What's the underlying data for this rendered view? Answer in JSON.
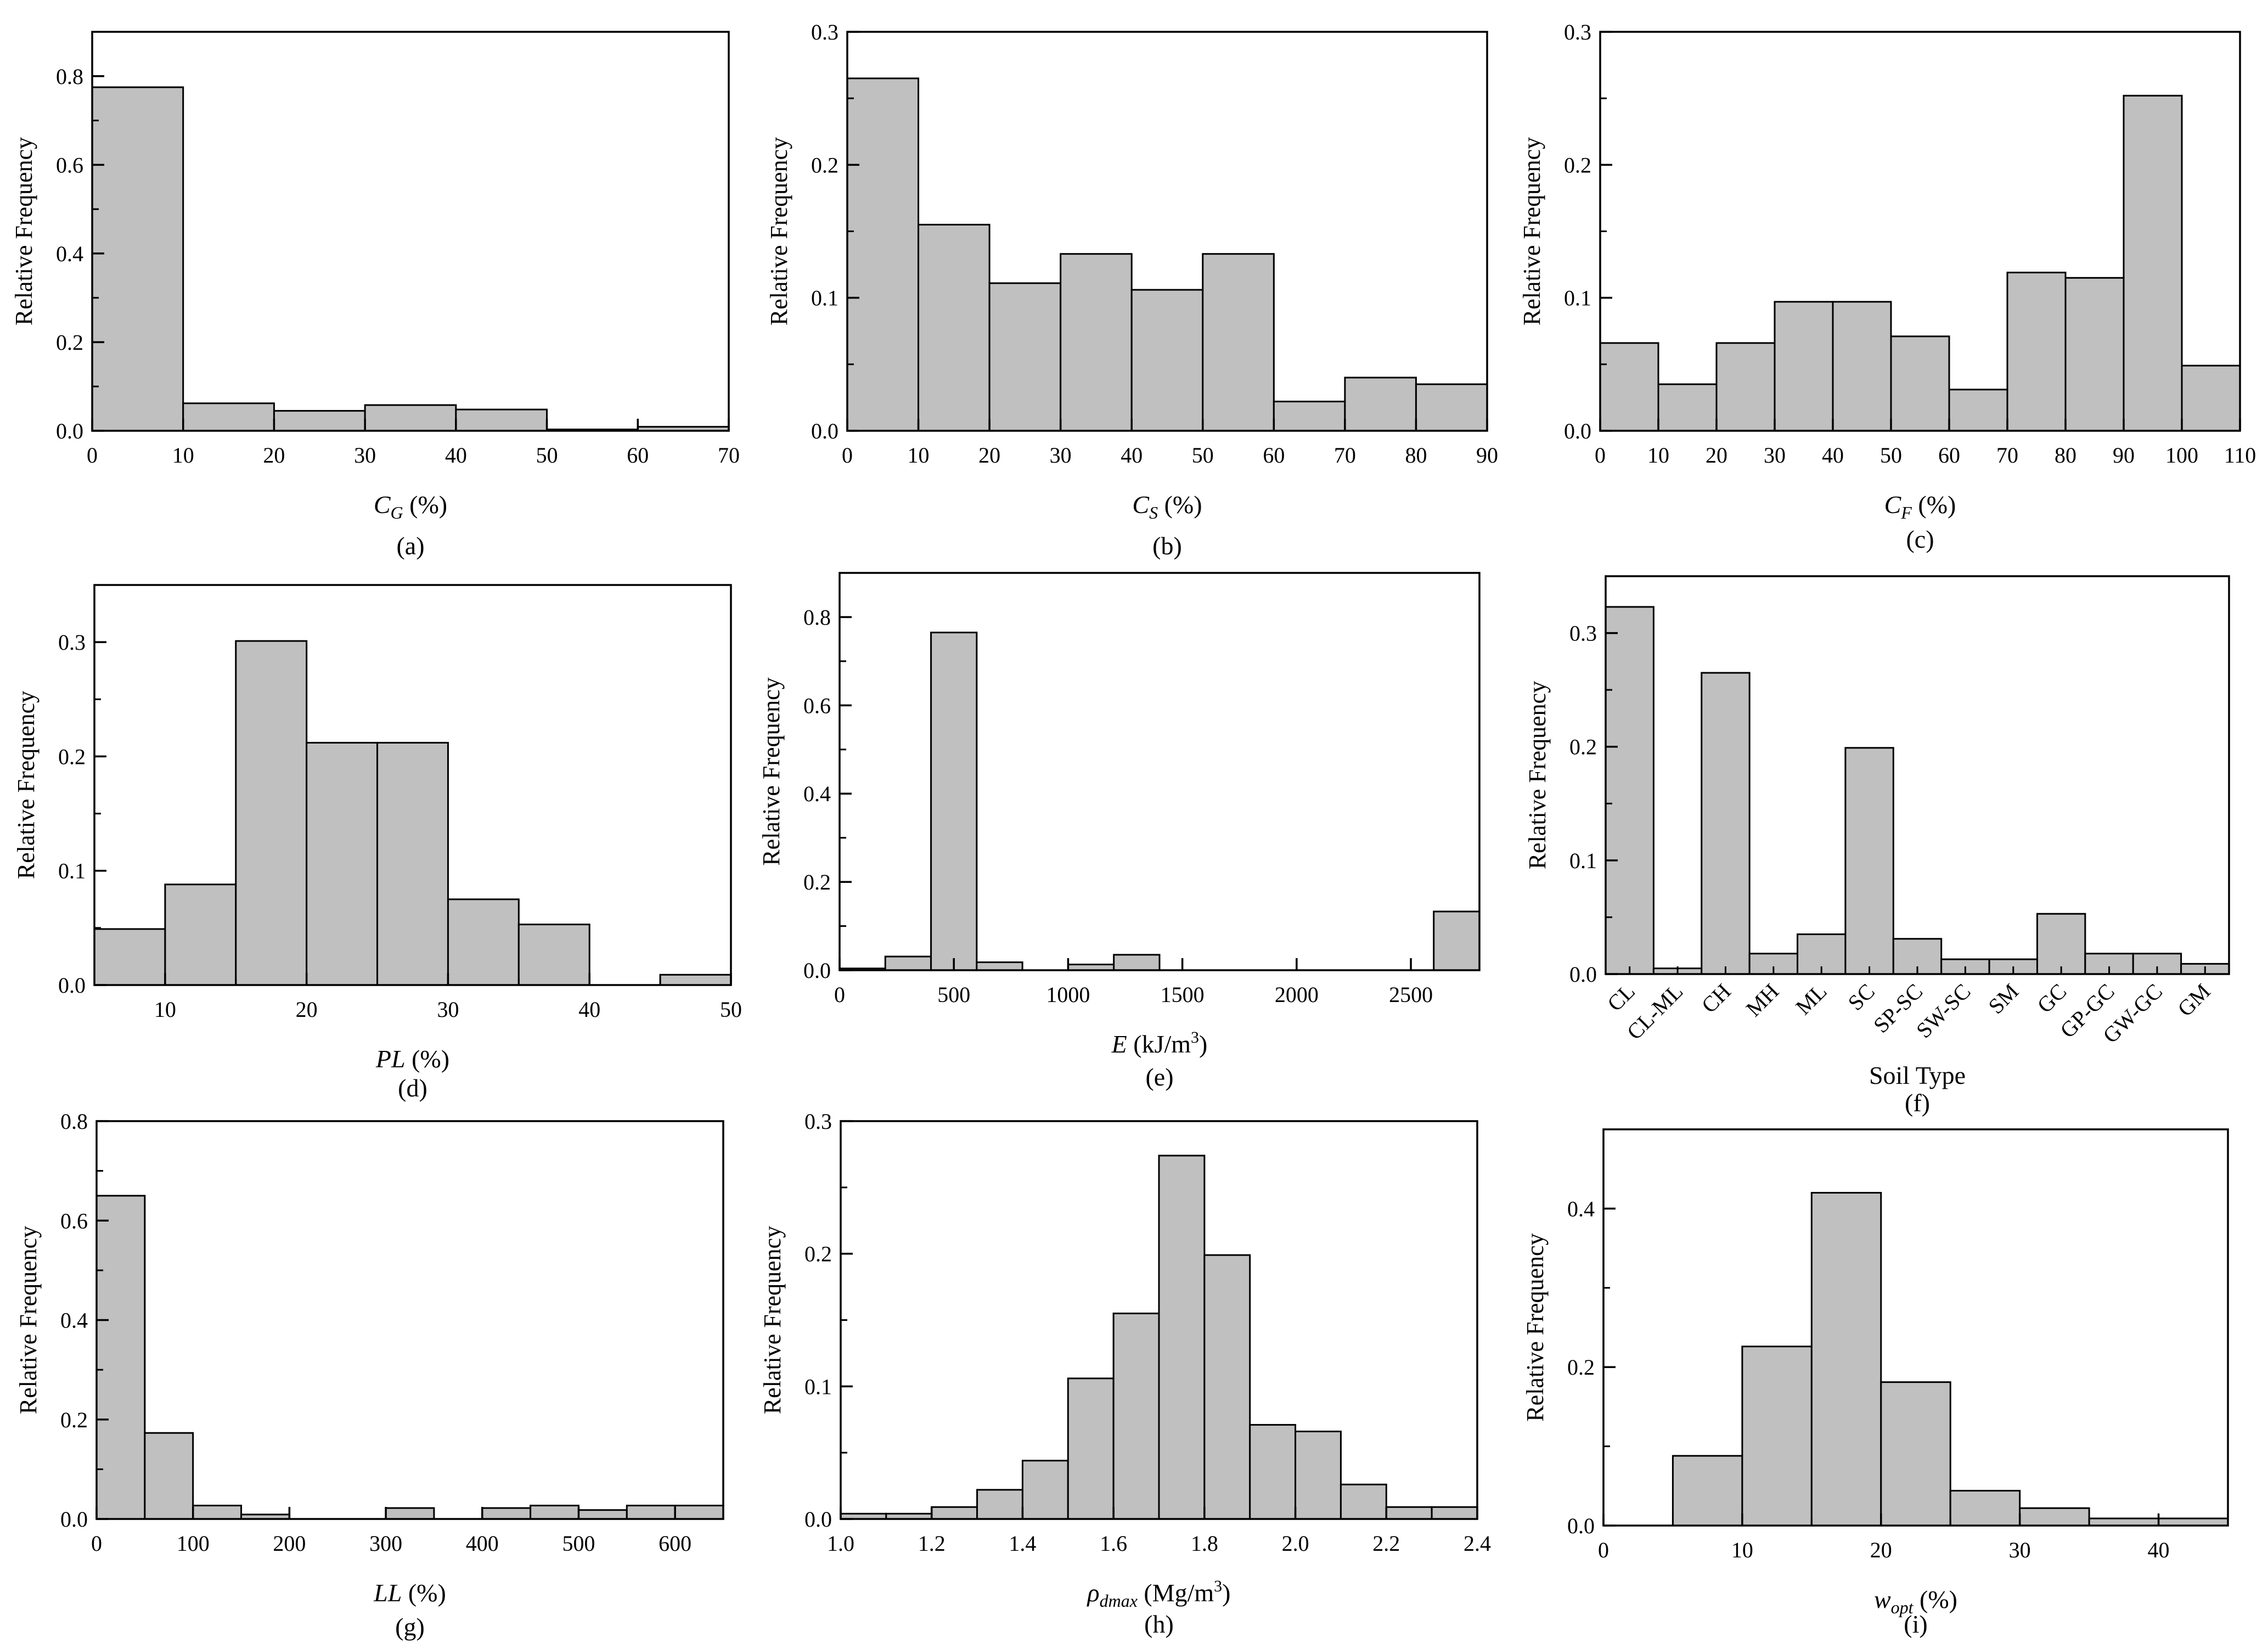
{
  "figure": {
    "ylabel_common": "Relative Frequency"
  },
  "chart_data": [
    {
      "id": "a",
      "type": "bar",
      "panel_label": "(a)",
      "title": "",
      "xlabel": "C_G (%)",
      "xlabel_main": "C",
      "xlabel_sub": "G",
      "xlabel_suffix": " (%)",
      "xlabel_italic": true,
      "ylabel": "Relative Frequency",
      "xlim": [
        0,
        70
      ],
      "ylim": [
        0,
        0.9
      ],
      "xticks": [
        0,
        10,
        20,
        30,
        40,
        50,
        60,
        70
      ],
      "xtick_labels": [
        "0",
        "10",
        "20",
        "30",
        "40",
        "50",
        "60",
        "70"
      ],
      "yticks": [
        0,
        0.2,
        0.4,
        0.6,
        0.8
      ],
      "ytick_labels": [
        "0.0",
        "0.2",
        "0.4",
        "0.6",
        "0.8"
      ],
      "bins": [
        [
          0,
          10
        ],
        [
          10,
          20
        ],
        [
          20,
          30
        ],
        [
          30,
          40
        ],
        [
          40,
          50
        ],
        [
          50,
          60
        ],
        [
          60,
          70
        ]
      ],
      "values": [
        0.775,
        0.062,
        0.045,
        0.058,
        0.048,
        0.003,
        0.009
      ]
    },
    {
      "id": "b",
      "type": "bar",
      "panel_label": "(b)",
      "title": "",
      "xlabel": "C_S (%)",
      "xlabel_main": "C",
      "xlabel_sub": "S",
      "xlabel_suffix": " (%)",
      "xlabel_italic": true,
      "ylabel": "Relative Frequency",
      "xlim": [
        0,
        90
      ],
      "ylim": [
        0,
        0.3
      ],
      "xticks": [
        0,
        10,
        20,
        30,
        40,
        50,
        60,
        70,
        80,
        90
      ],
      "xtick_labels": [
        "0",
        "10",
        "20",
        "30",
        "40",
        "50",
        "60",
        "70",
        "80",
        "90"
      ],
      "yticks": [
        0,
        0.1,
        0.2,
        0.3
      ],
      "ytick_labels": [
        "0.0",
        "0.1",
        "0.2",
        "0.3"
      ],
      "bins": [
        [
          0,
          10
        ],
        [
          10,
          20
        ],
        [
          20,
          30
        ],
        [
          30,
          40
        ],
        [
          40,
          50
        ],
        [
          50,
          60
        ],
        [
          60,
          70
        ],
        [
          70,
          80
        ],
        [
          80,
          90
        ]
      ],
      "values": [
        0.265,
        0.155,
        0.111,
        0.133,
        0.106,
        0.133,
        0.022,
        0.04,
        0.035
      ]
    },
    {
      "id": "c",
      "type": "bar",
      "panel_label": "(c)",
      "title": "",
      "xlabel": "C_F (%)",
      "xlabel_main": "C",
      "xlabel_sub": "F",
      "xlabel_suffix": " (%)",
      "xlabel_italic": true,
      "ylabel": "Relative Frequency",
      "xlim": [
        0,
        110
      ],
      "ylim": [
        0,
        0.3
      ],
      "xticks": [
        0,
        10,
        20,
        30,
        40,
        50,
        60,
        70,
        80,
        90,
        100,
        110
      ],
      "xtick_labels": [
        "0",
        "10",
        "20",
        "30",
        "40",
        "50",
        "60",
        "70",
        "80",
        "90",
        "100",
        "110"
      ],
      "yticks": [
        0,
        0.1,
        0.2,
        0.3
      ],
      "ytick_labels": [
        "0.0",
        "0.1",
        "0.2",
        "0.3"
      ],
      "bins": [
        [
          0,
          10
        ],
        [
          10,
          20
        ],
        [
          20,
          30
        ],
        [
          30,
          40
        ],
        [
          40,
          50
        ],
        [
          50,
          60
        ],
        [
          60,
          70
        ],
        [
          70,
          80
        ],
        [
          80,
          90
        ],
        [
          90,
          100
        ],
        [
          100,
          110
        ]
      ],
      "values": [
        0.066,
        0.035,
        0.066,
        0.097,
        0.097,
        0.071,
        0.031,
        0.119,
        0.115,
        0.252,
        0.049
      ]
    },
    {
      "id": "d",
      "type": "bar",
      "panel_label": "(d)",
      "title": "",
      "xlabel": "PL (%)",
      "xlabel_main": "PL",
      "xlabel_sub": "",
      "xlabel_suffix": " (%)",
      "xlabel_italic": true,
      "ylabel": "Relative Frequency",
      "xlim": [
        5,
        50
      ],
      "ylim": [
        0,
        0.35
      ],
      "xticks": [
        10,
        20,
        30,
        40,
        50
      ],
      "xtick_labels": [
        "10",
        "20",
        "30",
        "40",
        "50"
      ],
      "minor_xticks": [
        15,
        25,
        35,
        45
      ],
      "yticks": [
        0,
        0.1,
        0.2,
        0.3
      ],
      "ytick_labels": [
        "0.0",
        "0.1",
        "0.2",
        "0.3"
      ],
      "bins": [
        [
          5,
          10
        ],
        [
          10,
          15
        ],
        [
          15,
          20
        ],
        [
          20,
          25
        ],
        [
          25,
          30
        ],
        [
          30,
          35
        ],
        [
          35,
          40
        ],
        [
          40,
          45
        ],
        [
          45,
          50
        ]
      ],
      "values": [
        0.049,
        0.088,
        0.301,
        0.212,
        0.212,
        0.075,
        0.053,
        0,
        0.009
      ]
    },
    {
      "id": "e",
      "type": "bar",
      "panel_label": "(e)",
      "title": "",
      "xlabel": "E (kJ/m3)",
      "xlabel_main": "E",
      "xlabel_sub": "",
      "xlabel_suffix": " (kJ/m",
      "xlabel_sup": "3",
      "xlabel_suffix2": ")",
      "xlabel_italic": true,
      "ylabel": "Relative Frequency",
      "xlim": [
        0,
        2800
      ],
      "ylim": [
        0,
        0.9
      ],
      "xticks": [
        0,
        500,
        1000,
        1500,
        2000,
        2500
      ],
      "xtick_labels": [
        "0",
        "500",
        "1000",
        "1500",
        "2000",
        "2500"
      ],
      "yticks": [
        0,
        0.2,
        0.4,
        0.6,
        0.8
      ],
      "ytick_labels": [
        "0.0",
        "0.2",
        "0.4",
        "0.6",
        "0.8"
      ],
      "bins": [
        [
          0,
          200
        ],
        [
          200,
          400
        ],
        [
          400,
          600
        ],
        [
          600,
          800
        ],
        [
          800,
          1000
        ],
        [
          1000,
          1200
        ],
        [
          1200,
          1400
        ],
        [
          1400,
          1600
        ],
        [
          1600,
          1800
        ],
        [
          1800,
          2000
        ],
        [
          2000,
          2200
        ],
        [
          2200,
          2400
        ],
        [
          2400,
          2600
        ],
        [
          2600,
          2800
        ]
      ],
      "values": [
        0.004,
        0.031,
        0.765,
        0.018,
        0,
        0.013,
        0.035,
        0,
        0,
        0,
        0,
        0,
        0,
        0.133
      ]
    },
    {
      "id": "f",
      "type": "bar",
      "panel_label": "(f)",
      "title": "",
      "xlabel": "Soil Type",
      "xlabel_main": "Soil Type",
      "xlabel_sub": "",
      "xlabel_suffix": "",
      "xlabel_italic": false,
      "ylabel": "Relative Frequency",
      "ylim": [
        0,
        0.35
      ],
      "yticks": [
        0,
        0.1,
        0.2,
        0.3
      ],
      "ytick_labels": [
        "0.0",
        "0.1",
        "0.2",
        "0.3"
      ],
      "categories": [
        "CL",
        "CL-ML",
        "CH",
        "MH",
        "ML",
        "SC",
        "SP-SC",
        "SW-SC",
        "SM",
        "GC",
        "GP-GC",
        "GW-GC",
        "GM"
      ],
      "values": [
        0.323,
        0.005,
        0.265,
        0.018,
        0.035,
        0.199,
        0.031,
        0.013,
        0.013,
        0.053,
        0.018,
        0.018,
        0.009
      ]
    },
    {
      "id": "g",
      "type": "bar",
      "panel_label": "(g)",
      "title": "",
      "xlabel": "LL (%)",
      "xlabel_main": "LL",
      "xlabel_sub": "",
      "xlabel_suffix": " (%)",
      "xlabel_italic": true,
      "ylabel": "Relative Frequency",
      "xlim": [
        0,
        650
      ],
      "ylim": [
        0,
        0.8
      ],
      "xticks": [
        0,
        100,
        200,
        300,
        400,
        500,
        600
      ],
      "xtick_labels": [
        "0",
        "100",
        "200",
        "300",
        "400",
        "500",
        "600"
      ],
      "yticks": [
        0,
        0.2,
        0.4,
        0.6,
        0.8
      ],
      "ytick_labels": [
        "0.0",
        "0.2",
        "0.4",
        "0.6",
        "0.8"
      ],
      "bins": [
        [
          0,
          50
        ],
        [
          50,
          100
        ],
        [
          100,
          150
        ],
        [
          150,
          200
        ],
        [
          200,
          250
        ],
        [
          250,
          300
        ],
        [
          300,
          350
        ],
        [
          350,
          400
        ],
        [
          400,
          450
        ],
        [
          450,
          500
        ],
        [
          500,
          550
        ],
        [
          550,
          600
        ],
        [
          600,
          650
        ]
      ],
      "values": [
        0.65,
        0.173,
        0.027,
        0.009,
        0,
        0,
        0.022,
        0,
        0.022,
        0.027,
        0.018,
        0.027,
        0.027
      ]
    },
    {
      "id": "h",
      "type": "bar",
      "panel_label": "(h)",
      "title": "",
      "xlabel": "ρdmax (Mg/m3)",
      "xlabel_main": "ρ",
      "xlabel_sub": "dmax",
      "xlabel_suffix": " (Mg/m",
      "xlabel_sup": "3",
      "xlabel_suffix2": ")",
      "xlabel_italic": true,
      "ylabel": "Relative Frequency",
      "xlim": [
        1.0,
        2.4
      ],
      "ylim": [
        0,
        0.3
      ],
      "xticks": [
        1.0,
        1.2,
        1.4,
        1.6,
        1.8,
        2.0,
        2.2,
        2.4
      ],
      "xtick_labels": [
        "1.0",
        "1.2",
        "1.4",
        "1.6",
        "1.8",
        "2.0",
        "2.2",
        "2.4"
      ],
      "yticks": [
        0,
        0.1,
        0.2,
        0.3
      ],
      "ytick_labels": [
        "0.0",
        "0.1",
        "0.2",
        "0.3"
      ],
      "bins": [
        [
          1.0,
          1.1
        ],
        [
          1.1,
          1.2
        ],
        [
          1.2,
          1.3
        ],
        [
          1.3,
          1.4
        ],
        [
          1.4,
          1.5
        ],
        [
          1.5,
          1.6
        ],
        [
          1.6,
          1.7
        ],
        [
          1.7,
          1.8
        ],
        [
          1.8,
          1.9
        ],
        [
          1.9,
          2.0
        ],
        [
          2.0,
          2.1
        ],
        [
          2.1,
          2.2
        ],
        [
          2.2,
          2.3
        ],
        [
          2.3,
          2.4
        ]
      ],
      "values": [
        0.004,
        0.004,
        0.009,
        0.022,
        0.044,
        0.106,
        0.155,
        0.274,
        0.199,
        0.071,
        0.066,
        0.026,
        0.009,
        0.009
      ]
    },
    {
      "id": "i",
      "type": "bar",
      "panel_label": "(i)",
      "title": "",
      "xlabel": "w_opt (%)",
      "xlabel_main": "w",
      "xlabel_sub": "opt",
      "xlabel_suffix": " (%)",
      "xlabel_italic": true,
      "ylabel": "Relative Frequency",
      "xlim": [
        0,
        45
      ],
      "ylim": [
        0,
        0.5
      ],
      "xticks": [
        0,
        10,
        20,
        30,
        40
      ],
      "xtick_labels": [
        "0",
        "10",
        "20",
        "30",
        "40"
      ],
      "minor_xticks": [
        5,
        15,
        25,
        35,
        45
      ],
      "yticks": [
        0,
        0.2,
        0.4
      ],
      "ytick_labels": [
        "0.0",
        "0.2",
        "0.4"
      ],
      "bins": [
        [
          5,
          10
        ],
        [
          10,
          15
        ],
        [
          15,
          20
        ],
        [
          20,
          25
        ],
        [
          25,
          30
        ],
        [
          30,
          35
        ],
        [
          35,
          40
        ],
        [
          40,
          45
        ]
      ],
      "values": [
        0.088,
        0.226,
        0.42,
        0.181,
        0.044,
        0.022,
        0.009,
        0.009
      ]
    }
  ]
}
